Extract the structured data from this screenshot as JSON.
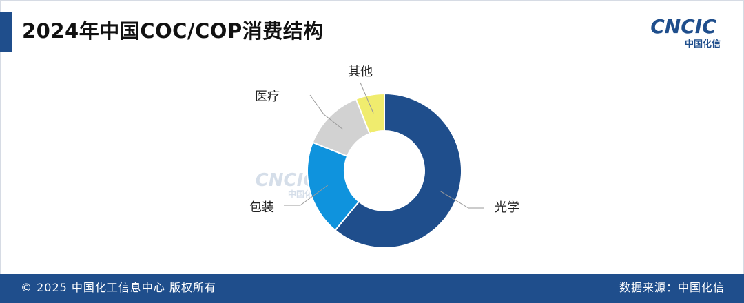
{
  "header": {
    "title": "2024年中国COC/COP消费结构",
    "logo_text": "CNCIC",
    "logo_subtext": "中国化信"
  },
  "colors": {
    "accent": "#1f4e8c",
    "optics": "#1f4e8c",
    "packaging": "#0f93dd",
    "medical": "#d2d2d2",
    "other": "#f0ec6e"
  },
  "chart_data": {
    "type": "pie",
    "donut": true,
    "categories": [
      "光学",
      "包装",
      "医疗",
      "其他"
    ],
    "values": [
      61,
      20,
      13,
      6
    ],
    "colors": [
      "#1f4e8c",
      "#0f93dd",
      "#d2d2d2",
      "#f0ec6e"
    ],
    "title": "2024年中国COC/COP消费结构",
    "legend": "none",
    "data_labels": "outside-with-leader-lines"
  },
  "footer": {
    "copyright": "© 2025 中国化工信息中心  版权所有",
    "source": "数据来源：中国化信"
  }
}
